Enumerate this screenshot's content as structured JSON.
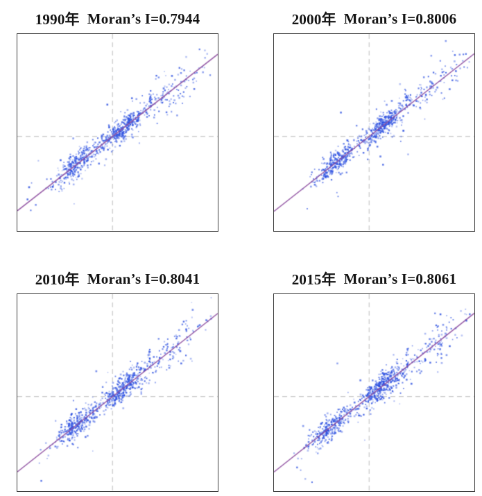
{
  "figure": {
    "description": "Four Moran scatter plots (2x2 grid) for years 1990, 2000, 2010, 2015; each shows standardized values vs spatial lag with dashed mean crosshair and a purple regression line whose slope equals Moran's I. No axis tick labels are shown.",
    "background_color": "#ffffff"
  },
  "style": {
    "point_color": "#2b4fe0",
    "line_color": "#8e4fa0",
    "grid_color": "#c9c9c9",
    "border_color": "#3c3c3c",
    "title_color": "#141414"
  },
  "chart_data": [
    {
      "type": "scatter",
      "year_label": "1990年",
      "moran_label": "Moran’s I=0.7944",
      "moran_i": 0.7944,
      "title": "1990年 Moran’s I=0.7944",
      "xlabel": "",
      "ylabel": "",
      "grid": "dashed crosshair at mean",
      "legend": "none",
      "crosshair": {
        "x": 0.475,
        "y": 0.52
      },
      "seed": 11,
      "clusters": [
        {
          "n": 300,
          "t": -0.175,
          "ts": 0.06,
          "ds": 0.03
        },
        {
          "n": 310,
          "t": 0.05,
          "ts": 0.055,
          "ds": 0.028
        },
        {
          "n": 140,
          "t": 0.27,
          "ts": 0.125,
          "ds": 0.05
        },
        {
          "n": 40,
          "t": 0.03,
          "ts": 0.3,
          "ds": 0.095
        }
      ],
      "streaks": [
        {
          "x": 0.265,
          "y0": 0.595,
          "y1": 0.725,
          "n": 13
        },
        {
          "x": 0.665,
          "y0": 0.275,
          "y1": 0.385,
          "n": 15
        }
      ]
    },
    {
      "type": "scatter",
      "year_label": "2000年",
      "moran_label": "Moran’s I=0.8006",
      "moran_i": 0.8006,
      "title": "2000年 Moran’s I=0.8006",
      "xlabel": "",
      "ylabel": "",
      "grid": "dashed crosshair at mean",
      "legend": "none",
      "crosshair": {
        "x": 0.475,
        "y": 0.52
      },
      "seed": 22,
      "clusters": [
        {
          "n": 290,
          "t": -0.165,
          "ts": 0.058,
          "ds": 0.028
        },
        {
          "n": 320,
          "t": 0.06,
          "ts": 0.05,
          "ds": 0.026
        },
        {
          "n": 140,
          "t": 0.28,
          "ts": 0.12,
          "ds": 0.048
        },
        {
          "n": 38,
          "t": 0.05,
          "ts": 0.3,
          "ds": 0.09
        }
      ],
      "streaks": [
        {
          "x": 0.285,
          "y0": 0.6,
          "y1": 0.715,
          "n": 12
        },
        {
          "x": 0.66,
          "y0": 0.28,
          "y1": 0.375,
          "n": 14
        }
      ]
    },
    {
      "type": "scatter",
      "year_label": "2010年",
      "moran_label": "Moran’s I=0.8041",
      "moran_i": 0.8041,
      "title": "2010年 Moran’s I=0.8041",
      "xlabel": "",
      "ylabel": "",
      "grid": "dashed crosshair at mean",
      "legend": "none",
      "crosshair": {
        "x": 0.475,
        "y": 0.52
      },
      "seed": 33,
      "clusters": [
        {
          "n": 300,
          "t": -0.175,
          "ts": 0.06,
          "ds": 0.03
        },
        {
          "n": 320,
          "t": 0.05,
          "ts": 0.055,
          "ds": 0.029
        },
        {
          "n": 140,
          "t": 0.27,
          "ts": 0.125,
          "ds": 0.05
        },
        {
          "n": 42,
          "t": 0.03,
          "ts": 0.3,
          "ds": 0.095
        }
      ],
      "streaks": [
        {
          "x": 0.27,
          "y0": 0.595,
          "y1": 0.72,
          "n": 13
        },
        {
          "x": 0.66,
          "y0": 0.275,
          "y1": 0.38,
          "n": 15
        }
      ]
    },
    {
      "type": "scatter",
      "year_label": "2015年",
      "moran_label": "Moran’s I=0.8061",
      "moran_i": 0.8061,
      "title": "2015年 Moran’s I=0.8061",
      "xlabel": "",
      "ylabel": "",
      "grid": "dashed crosshair at mean",
      "legend": "none",
      "crosshair": {
        "x": 0.475,
        "y": 0.52
      },
      "seed": 44,
      "clusters": [
        {
          "n": 280,
          "t": -0.19,
          "ts": 0.058,
          "ds": 0.03
        },
        {
          "n": 380,
          "t": 0.06,
          "ts": 0.052,
          "ds": 0.034
        },
        {
          "n": 150,
          "t": 0.28,
          "ts": 0.125,
          "ds": 0.052
        },
        {
          "n": 40,
          "t": 0.04,
          "ts": 0.3,
          "ds": 0.095
        }
      ],
      "streaks": [
        {
          "x": 0.26,
          "y0": 0.61,
          "y1": 0.73,
          "n": 12
        },
        {
          "x": 0.665,
          "y0": 0.27,
          "y1": 0.38,
          "n": 15
        }
      ]
    }
  ]
}
